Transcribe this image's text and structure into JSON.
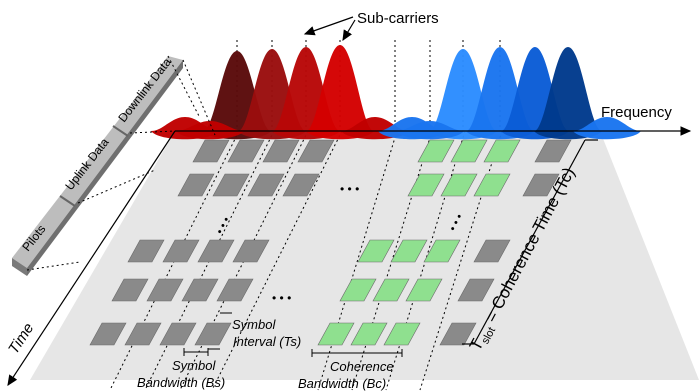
{
  "labels": {
    "subcarriers": "Sub-carriers",
    "frequency": "Frequency",
    "time": "Time",
    "coherence_time": "T",
    "coherence_time_sub": "slot",
    "coherence_time_rest": " = Coherence Time (Tc)",
    "symbol_interval_1": "Symbol",
    "symbol_interval_2": "Interval (Ts)",
    "symbol_bandwidth_1": "Symbol",
    "symbol_bandwidth_2": "Bandwidth (Bs)",
    "coherence_bandwidth_1": "Coherence",
    "coherence_bandwidth_2": "Bandwidth (Bc)",
    "ellipsis": "• • •"
  },
  "slot_segments": {
    "pilots": "Pilots",
    "uplink": "Uplink Data",
    "downlink": "Downlink Data"
  },
  "colors": {
    "plane": "#e6e6e6",
    "resource_gray": "#8a8a8a",
    "resource_green": "#8fe08f",
    "red_dark": "#5a0a0a",
    "red_mid": "#9a0d0d",
    "red_bright": "#d40000",
    "blue_dark": "#003a8c",
    "blue_mid": "#0a5cd6",
    "blue_bright": "#2b8cff",
    "slot_bar": "#9a9a9a"
  }
}
